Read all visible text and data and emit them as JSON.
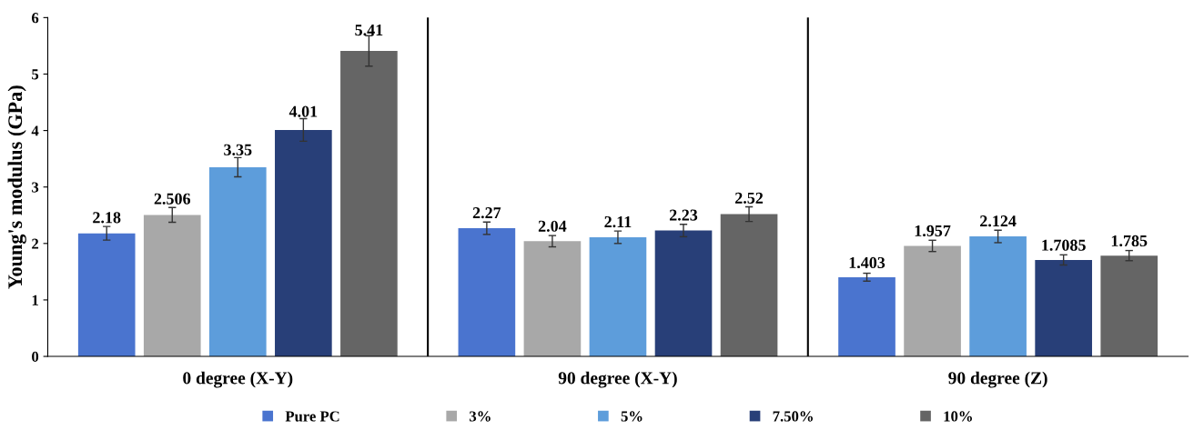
{
  "chart_data": {
    "type": "bar",
    "ylabel": "Young's modulus (GPa)",
    "categories": [
      "0 degree (X-Y)",
      "90 degree (X-Y)",
      "90 degree (Z)"
    ],
    "series": [
      {
        "name": "Pure PC",
        "color": "#4a74cf",
        "values": [
          2.18,
          2.27,
          1.403
        ],
        "errors": [
          0.12,
          0.11,
          0.07
        ]
      },
      {
        "name": "3%",
        "color": "#a8a8a8",
        "values": [
          2.506,
          2.04,
          1.957
        ],
        "errors": [
          0.13,
          0.1,
          0.1
        ]
      },
      {
        "name": "5%",
        "color": "#5d9ddb",
        "values": [
          3.35,
          2.11,
          2.124
        ],
        "errors": [
          0.17,
          0.11,
          0.11
        ]
      },
      {
        "name": "7.50%",
        "color": "#283f78",
        "values": [
          4.01,
          2.23,
          1.7085
        ],
        "errors": [
          0.2,
          0.11,
          0.09
        ]
      },
      {
        "name": "10%",
        "color": "#656565",
        "values": [
          5.41,
          2.52,
          1.785
        ],
        "errors": [
          0.27,
          0.13,
          0.09
        ]
      }
    ],
    "ylim": [
      0,
      6
    ],
    "yticks": [
      0,
      1,
      2,
      3,
      4,
      5,
      6
    ],
    "grid": false,
    "legend": "bottom",
    "data_labels": true
  }
}
